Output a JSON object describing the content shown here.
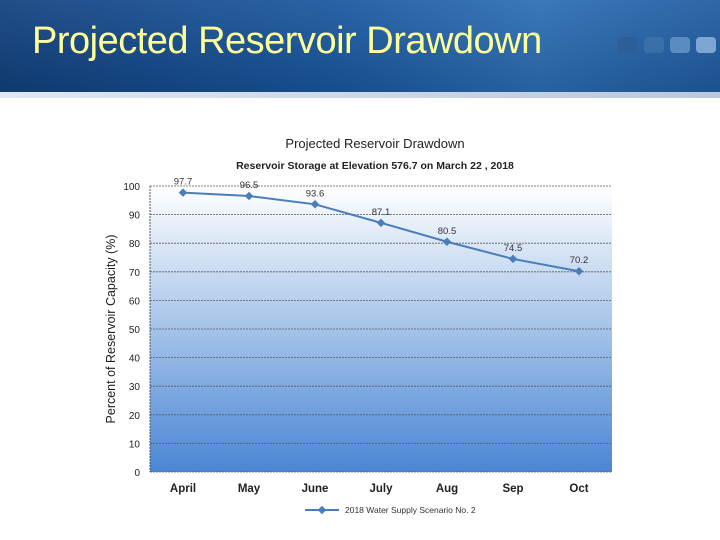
{
  "slide": {
    "title": "Projected Reservoir Drawdown",
    "dots": [
      "#2d5e98",
      "#3a6fa8",
      "#5a8cc0",
      "#7ba7d2"
    ]
  },
  "chart_data": {
    "type": "line",
    "title": "Projected Reservoir Drawdown",
    "subtitle": "Reservoir Storage at Elevation  576.7  on March 22 , 2018",
    "xlabel": "",
    "ylabel": "Percent of Reservoir Capacity (%)",
    "categories": [
      "April",
      "May",
      "June",
      "July",
      "Aug",
      "Sep",
      "Oct"
    ],
    "series": [
      {
        "name": "2018 Water Supply Scenario No. 2",
        "values": [
          97.7,
          96.5,
          93.6,
          87.1,
          80.5,
          74.5,
          70.2
        ],
        "labels": [
          "97.7",
          "96.5",
          "93.6",
          "87.1",
          "80.5",
          "74.5",
          "70.2"
        ],
        "color": "#4a7ebb"
      }
    ],
    "ylim": [
      0,
      100
    ],
    "yticks": [
      0,
      10,
      20,
      30,
      40,
      50,
      60,
      70,
      80,
      90,
      100
    ],
    "grid": true,
    "legend": "bottom",
    "background_top": "#ffffff",
    "background_bottom": "#4a86d4"
  }
}
